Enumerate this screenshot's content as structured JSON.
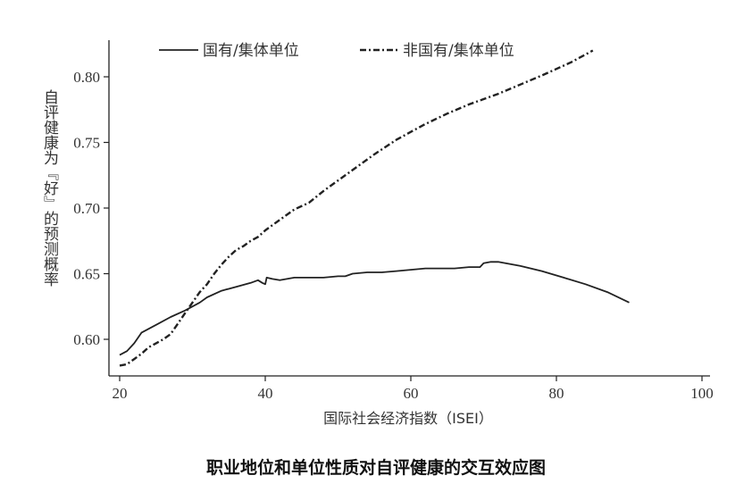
{
  "chart_data": {
    "type": "line",
    "title": "",
    "xlabel": "国际社会经济指数（ISEI）",
    "ylabel": "自评健康为『好』的预测概率",
    "xlim": [
      20,
      100
    ],
    "ylim": [
      0.575,
      0.835
    ],
    "xticks": [
      20,
      40,
      60,
      80,
      100
    ],
    "yticks": [
      0.6,
      0.65,
      0.7,
      0.75,
      0.8
    ],
    "x_tick_labels": [
      "20",
      "40",
      "60",
      "80",
      "100"
    ],
    "y_tick_labels": [
      "0.60",
      "0.65",
      "0.70",
      "0.75",
      "0.80"
    ],
    "grid": false,
    "legend_position": "top",
    "series": [
      {
        "name": "国有/集体单位",
        "style": "solid",
        "color": "#222222",
        "x": [
          20,
          21,
          22,
          23,
          25,
          27,
          29,
          31,
          32,
          34,
          36,
          38,
          39,
          39.6,
          40,
          40.2,
          41,
          42,
          44,
          46,
          48,
          50,
          51,
          52,
          54,
          56,
          58,
          60,
          62,
          64,
          66,
          68,
          69,
          69.5,
          70,
          71,
          72,
          75,
          78,
          81,
          84,
          87,
          90
        ],
        "values": [
          0.588,
          0.591,
          0.597,
          0.605,
          0.611,
          0.617,
          0.622,
          0.628,
          0.632,
          0.637,
          0.64,
          0.643,
          0.645,
          0.643,
          0.642,
          0.647,
          0.646,
          0.645,
          0.647,
          0.647,
          0.647,
          0.648,
          0.648,
          0.65,
          0.651,
          0.651,
          0.652,
          0.653,
          0.654,
          0.654,
          0.654,
          0.655,
          0.655,
          0.655,
          0.658,
          0.659,
          0.659,
          0.656,
          0.652,
          0.647,
          0.642,
          0.636,
          0.628
        ]
      },
      {
        "name": "非国有/集体单位",
        "style": "dash-dot",
        "color": "#222222",
        "x": [
          20,
          21,
          22,
          23,
          24,
          25,
          26,
          27,
          28,
          29,
          30,
          31,
          32,
          33,
          34,
          35,
          36,
          37,
          38,
          39,
          40,
          41,
          42,
          43,
          44,
          46,
          48,
          50,
          52,
          55,
          58,
          60,
          62,
          65,
          68,
          70,
          72,
          75,
          78,
          80,
          82,
          85
        ],
        "values": [
          0.58,
          0.581,
          0.585,
          0.589,
          0.594,
          0.597,
          0.6,
          0.604,
          0.612,
          0.62,
          0.628,
          0.636,
          0.642,
          0.65,
          0.657,
          0.663,
          0.668,
          0.671,
          0.675,
          0.678,
          0.683,
          0.687,
          0.691,
          0.695,
          0.699,
          0.704,
          0.713,
          0.721,
          0.729,
          0.741,
          0.752,
          0.758,
          0.764,
          0.772,
          0.779,
          0.783,
          0.787,
          0.794,
          0.801,
          0.806,
          0.811,
          0.82
        ]
      }
    ]
  },
  "caption": "职业地位和单位性质对自评健康的交互效应图"
}
